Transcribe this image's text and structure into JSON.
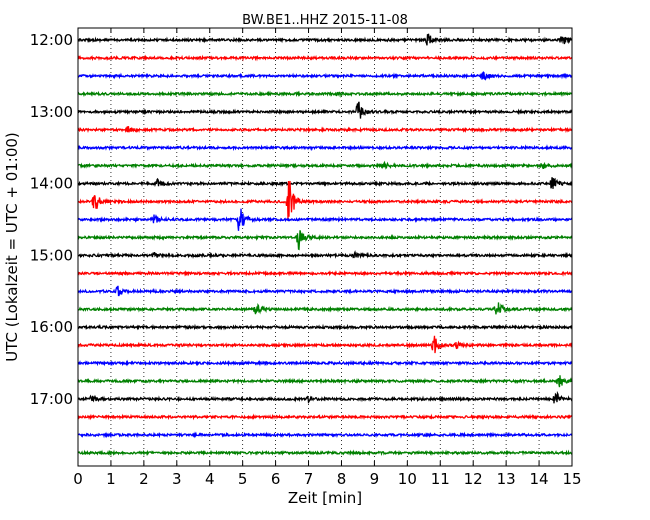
{
  "chart_data": {
    "type": "line",
    "title": "BW.BE1..HHZ 2015-11-08",
    "xlabel": "Zeit  [min]",
    "ylabel": "UTC (Lokalzeit = UTC + 01:00)",
    "xlim": [
      0,
      15
    ],
    "x_ticks": [
      "0",
      "1",
      "2",
      "3",
      "4",
      "5",
      "6",
      "7",
      "8",
      "9",
      "10",
      "11",
      "12",
      "13",
      "14",
      "15"
    ],
    "y_tick_labels": [
      "12:00",
      "13:00",
      "14:00",
      "15:00",
      "16:00",
      "17:00"
    ],
    "y_tick_every_n_traces": 4,
    "x_grid": "dotted vertical at each minute",
    "trace_colors": [
      "#000000",
      "#ff0000",
      "#0000ff",
      "#008000"
    ],
    "traces": [
      {
        "start": "12:00",
        "events": [
          {
            "t": 10.6,
            "amp": 8
          },
          {
            "t": 14.7,
            "amp": 8
          }
        ]
      },
      {
        "start": "12:15",
        "events": []
      },
      {
        "start": "12:30",
        "events": [
          {
            "t": 12.3,
            "amp": 5
          }
        ]
      },
      {
        "start": "12:45",
        "events": [
          {
            "t": 7.9,
            "amp": 3
          }
        ]
      },
      {
        "start": "13:00",
        "events": [
          {
            "t": 8.5,
            "amp": 12
          }
        ]
      },
      {
        "start": "13:15",
        "events": [
          {
            "t": 1.5,
            "amp": 3
          }
        ]
      },
      {
        "start": "13:30",
        "events": []
      },
      {
        "start": "13:45",
        "events": [
          {
            "t": 9.3,
            "amp": 3
          },
          {
            "t": 14.1,
            "amp": 3
          }
        ]
      },
      {
        "start": "14:00",
        "events": [
          {
            "t": 2.4,
            "amp": 4
          },
          {
            "t": 14.4,
            "amp": 7
          }
        ]
      },
      {
        "start": "14:15",
        "events": [
          {
            "t": 0.5,
            "amp": 12
          },
          {
            "t": 6.4,
            "amp": 28
          }
        ]
      },
      {
        "start": "14:30",
        "events": [
          {
            "t": 2.3,
            "amp": 5
          },
          {
            "t": 4.9,
            "amp": 18
          }
        ]
      },
      {
        "start": "14:45",
        "events": [
          {
            "t": 6.7,
            "amp": 13
          }
        ]
      },
      {
        "start": "15:00",
        "events": [
          {
            "t": 2.3,
            "amp": 3
          },
          {
            "t": 8.4,
            "amp": 3
          }
        ]
      },
      {
        "start": "15:15",
        "events": []
      },
      {
        "start": "15:30",
        "events": [
          {
            "t": 1.2,
            "amp": 5
          }
        ]
      },
      {
        "start": "15:45",
        "events": [
          {
            "t": 5.4,
            "amp": 6
          },
          {
            "t": 12.7,
            "amp": 11
          }
        ]
      },
      {
        "start": "16:00",
        "events": []
      },
      {
        "start": "16:15",
        "events": [
          {
            "t": 10.8,
            "amp": 11
          },
          {
            "t": 11.5,
            "amp": 3
          }
        ]
      },
      {
        "start": "16:30",
        "events": []
      },
      {
        "start": "16:45",
        "events": [
          {
            "t": 14.6,
            "amp": 8
          }
        ]
      },
      {
        "start": "17:00",
        "events": [
          {
            "t": 0.4,
            "amp": 4
          },
          {
            "t": 7.0,
            "amp": 3
          },
          {
            "t": 14.5,
            "amp": 8
          }
        ]
      },
      {
        "start": "17:15",
        "events": []
      },
      {
        "start": "17:30",
        "events": []
      },
      {
        "start": "17:45",
        "events": []
      }
    ]
  }
}
